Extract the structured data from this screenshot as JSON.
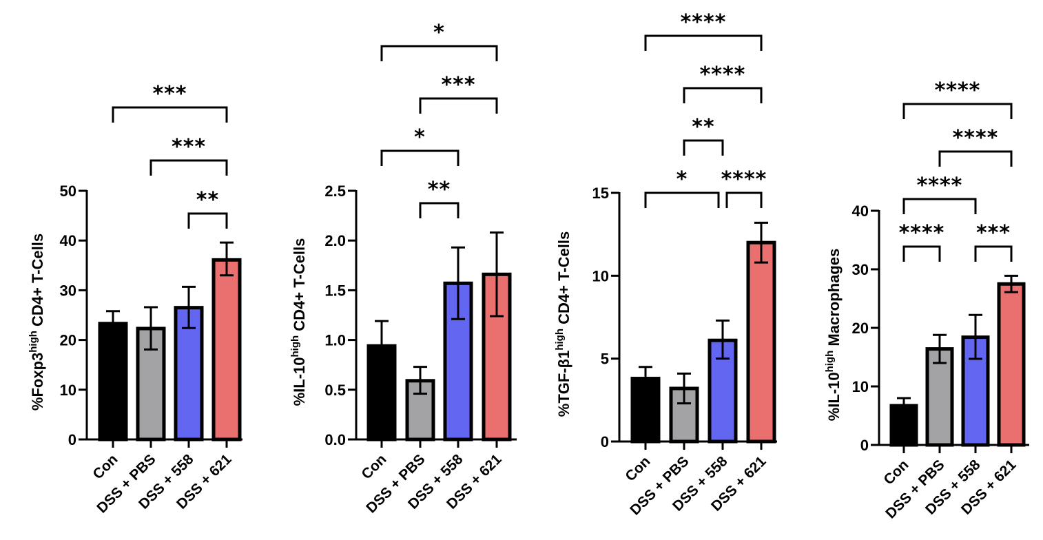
{
  "chart_data": [
    {
      "type": "bar",
      "title": "",
      "xlabel": "",
      "ylabel": {
        "prefix": "%Foxp3",
        "sup": "high",
        "suffix": " CD4+ T-Cells"
      },
      "categories": [
        "Con",
        "DSS + PBS",
        "DSS + 558",
        "DSS + 621"
      ],
      "colors": [
        "#000000",
        "#a3a3a6",
        "#6366f1",
        "#e9706e"
      ],
      "values": [
        23.3,
        22.3,
        26.5,
        36.1
      ],
      "error_low": [
        null,
        18.1,
        22.4,
        33.0
      ],
      "error_high": [
        25.8,
        26.6,
        30.7,
        39.6
      ],
      "ylim": [
        0,
        50
      ],
      "yticks": [
        "0",
        "10",
        "20",
        "30",
        "40",
        "50"
      ],
      "ytick_values": [
        0,
        10,
        20,
        30,
        40,
        50
      ],
      "comparisons": [
        {
          "from": 2,
          "to": 3,
          "label": "**",
          "level": 0
        },
        {
          "from": 1,
          "to": 3,
          "label": "***",
          "level": 1
        },
        {
          "from": 0,
          "to": 3,
          "label": "***",
          "level": 2
        }
      ]
    },
    {
      "type": "bar",
      "title": "",
      "xlabel": "",
      "ylabel": {
        "prefix": "%IL-10",
        "sup": "high",
        "suffix": " CD4+ T-Cells"
      },
      "categories": [
        "Con",
        "DSS + PBS",
        "DSS + 558",
        "DSS + 621"
      ],
      "colors": [
        "#000000",
        "#a3a3a6",
        "#6366f1",
        "#e9706e"
      ],
      "values": [
        0.94,
        0.59,
        1.57,
        1.66
      ],
      "error_low": [
        null,
        0.46,
        1.21,
        1.24
      ],
      "error_high": [
        1.19,
        0.73,
        1.93,
        2.08
      ],
      "ylim": [
        0,
        2.5
      ],
      "yticks": [
        "0.0",
        "0.5",
        "1.0",
        "1.5",
        "2.0",
        "2.5"
      ],
      "ytick_values": [
        0,
        0.5,
        1.0,
        1.5,
        2.0,
        2.5
      ],
      "comparisons": [
        {
          "from": 1,
          "to": 2,
          "label": "**",
          "level": 0
        },
        {
          "from": 0,
          "to": 2,
          "label": "*",
          "level": 1
        },
        {
          "from": 1,
          "to": 3,
          "label": "***",
          "level": 2
        },
        {
          "from": 0,
          "to": 3,
          "label": "*",
          "level": 3
        }
      ]
    },
    {
      "type": "bar",
      "title": "",
      "xlabel": "",
      "ylabel": {
        "prefix": "%TGF-β1",
        "sup": "high",
        "suffix": " CD4+ T-Cells"
      },
      "categories": [
        "Con",
        "DSS + PBS",
        "DSS + 558",
        "DSS + 621"
      ],
      "colors": [
        "#000000",
        "#a3a3a6",
        "#6366f1",
        "#e9706e"
      ],
      "values": [
        3.8,
        3.2,
        6.1,
        12.0
      ],
      "error_low": [
        null,
        2.3,
        5.0,
        10.8
      ],
      "error_high": [
        4.5,
        4.1,
        7.3,
        13.2
      ],
      "ylim": [
        0,
        15
      ],
      "yticks": [
        "0",
        "5",
        "10",
        "15"
      ],
      "ytick_values": [
        0,
        5,
        10,
        15
      ],
      "comparisons": [
        {
          "from": 0,
          "to": 2,
          "label": "*",
          "level": 0
        },
        {
          "from": 2,
          "to": 3,
          "label": "****",
          "level": 0
        },
        {
          "from": 1,
          "to": 2,
          "label": "**",
          "level": 1
        },
        {
          "from": 1,
          "to": 3,
          "label": "****",
          "level": 2
        },
        {
          "from": 0,
          "to": 3,
          "label": "****",
          "level": 3
        }
      ]
    },
    {
      "type": "bar",
      "title": "",
      "xlabel": "",
      "ylabel": {
        "prefix": "%IL-10",
        "sup": "high",
        "suffix": " Macrophages"
      },
      "categories": [
        "Con",
        "DSS + PBS",
        "DSS + 558",
        "DSS + 621"
      ],
      "colors": [
        "#000000",
        "#a3a3a6",
        "#6366f1",
        "#e9706e"
      ],
      "values": [
        6.7,
        16.4,
        18.4,
        27.5
      ],
      "error_low": [
        null,
        14.0,
        14.7,
        26.1
      ],
      "error_high": [
        8.0,
        18.8,
        22.2,
        28.9
      ],
      "ylim": [
        0,
        40
      ],
      "yticks": [
        "0",
        "10",
        "20",
        "30",
        "40"
      ],
      "ytick_values": [
        0,
        10,
        20,
        30,
        40
      ],
      "comparisons": [
        {
          "from": 0,
          "to": 1,
          "label": "****",
          "level": 0
        },
        {
          "from": 2,
          "to": 3,
          "label": "***",
          "level": 0
        },
        {
          "from": 0,
          "to": 2,
          "label": "****",
          "level": 1
        },
        {
          "from": 1,
          "to": 3,
          "label": "****",
          "level": 2
        },
        {
          "from": 0,
          "to": 3,
          "label": "****",
          "level": 3
        }
      ]
    }
  ]
}
